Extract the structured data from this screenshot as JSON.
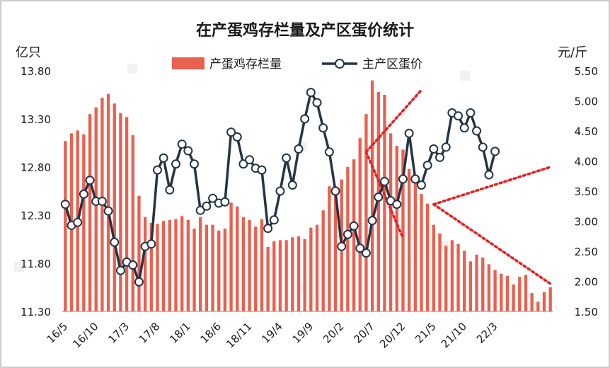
{
  "chart_data": {
    "type": "bar-line-combo",
    "title": "在产蛋鸡存栏量及产区蛋价统计",
    "y_left_label": "亿只",
    "y_right_label": "元/斤",
    "y_left_range": [
      11.3,
      13.8
    ],
    "y_right_range": [
      1.5,
      5.5
    ],
    "y_left_ticks": [
      "13.80",
      "13.30",
      "12.80",
      "12.30",
      "11.80",
      "11.30"
    ],
    "y_right_ticks": [
      "5.50",
      "5.00",
      "4.50",
      "4.00",
      "3.50",
      "3.00",
      "2.50",
      "2.00",
      "1.50"
    ],
    "x_tick_labels": [
      "16/5",
      "16/10",
      "17/3",
      "17/8",
      "18/1",
      "18/6",
      "18/11",
      "19/4",
      "19/9",
      "20/2",
      "20/7",
      "20/12",
      "21/5",
      "21/10",
      "22/3"
    ],
    "x_tick_every": 5,
    "legend": {
      "placement": "top-center"
    },
    "series": [
      {
        "name": "产蛋鸡存栏量",
        "kind": "bar",
        "axis": "left",
        "color": "#e9604f",
        "values": [
          13.07,
          13.15,
          13.18,
          13.14,
          13.35,
          13.42,
          13.52,
          13.56,
          13.46,
          13.36,
          13.32,
          13.13,
          12.5,
          12.28,
          12.22,
          12.21,
          12.24,
          12.25,
          12.26,
          12.29,
          12.25,
          12.16,
          12.28,
          12.2,
          12.2,
          12.14,
          12.16,
          12.43,
          12.39,
          12.28,
          12.25,
          12.18,
          12.26,
          11.97,
          12.03,
          12.04,
          12.04,
          12.07,
          12.08,
          12.05,
          12.17,
          12.2,
          12.35,
          12.6,
          12.6,
          12.67,
          12.8,
          12.88,
          13.1,
          13.35,
          13.7,
          13.58,
          13.55,
          13.15,
          13.02,
          12.98,
          12.78,
          12.72,
          12.52,
          12.42,
          12.2,
          12.11,
          11.98,
          12.04,
          12.0,
          11.93,
          11.82,
          11.89,
          11.86,
          11.79,
          11.73,
          11.69,
          11.67,
          11.58,
          11.66,
          11.68,
          11.49,
          11.4,
          11.5,
          11.55
        ]
      },
      {
        "name": "主产区蛋价",
        "kind": "line",
        "axis": "right",
        "color": "#243444",
        "values": [
          3.28,
          2.93,
          2.98,
          3.45,
          3.68,
          3.33,
          3.33,
          3.17,
          2.65,
          2.18,
          2.32,
          2.27,
          1.99,
          2.58,
          2.62,
          3.85,
          4.05,
          3.52,
          3.95,
          4.28,
          4.17,
          3.95,
          3.18,
          3.25,
          3.38,
          3.3,
          3.32,
          4.48,
          4.4,
          3.95,
          4.02,
          3.88,
          3.85,
          2.88,
          3.02,
          3.5,
          4.05,
          3.6,
          4.2,
          4.7,
          5.14,
          4.97,
          4.55,
          4.15,
          3.5,
          2.58,
          2.78,
          2.92,
          2.55,
          2.47,
          3.01,
          3.4,
          3.66,
          3.34,
          3.28,
          3.7,
          4.46,
          3.7,
          3.6,
          3.93,
          4.2,
          4.06,
          4.23,
          4.8,
          4.75,
          4.55,
          4.8,
          4.5,
          4.23,
          3.77,
          4.16
        ]
      }
    ],
    "trend_lines": {
      "color": "#e61e1e",
      "lines": [
        {
          "from": [
            49,
            4.15
          ],
          "to": [
            58,
            5.18
          ]
        },
        {
          "from": [
            49,
            4.15
          ],
          "to": [
            55,
            2.72
          ]
        },
        {
          "from": [
            60,
            3.28
          ],
          "to": [
            79,
            3.9
          ]
        },
        {
          "from": [
            60,
            3.28
          ],
          "to": [
            79,
            1.96
          ]
        }
      ]
    }
  }
}
